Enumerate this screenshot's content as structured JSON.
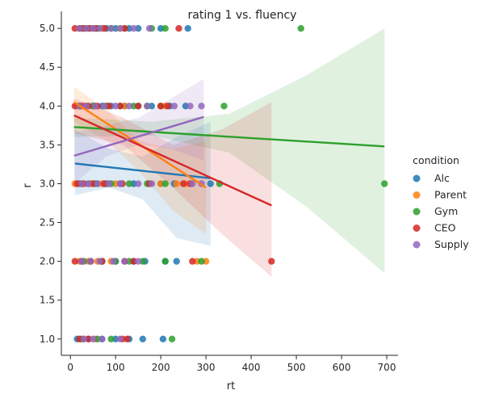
{
  "chart_data": {
    "type": "scatter",
    "title": "rating 1 vs. fluency",
    "xlabel": "rt",
    "ylabel": "r",
    "xlim": [
      -20,
      725
    ],
    "ylim": [
      0.79,
      5.22
    ],
    "xticks": [
      0,
      100,
      200,
      300,
      400,
      500,
      600,
      700
    ],
    "yticks": [
      1.0,
      1.5,
      2.0,
      2.5,
      3.0,
      3.5,
      4.0,
      4.5,
      5.0
    ],
    "grid": false,
    "legend": {
      "title": "condition",
      "placement": "right",
      "entries": [
        "Alc",
        "Parent",
        "Gym",
        "CEO",
        "Supply"
      ]
    },
    "series": [
      {
        "name": "Alc",
        "color": "#1f77b4",
        "points": [
          [
            20,
            5
          ],
          [
            30,
            5
          ],
          [
            45,
            5
          ],
          [
            60,
            5
          ],
          [
            80,
            5
          ],
          [
            100,
            5
          ],
          [
            130,
            5
          ],
          [
            150,
            5
          ],
          [
            200,
            5
          ],
          [
            260,
            5
          ],
          [
            20,
            4
          ],
          [
            35,
            4
          ],
          [
            50,
            4
          ],
          [
            70,
            4
          ],
          [
            90,
            4
          ],
          [
            120,
            4
          ],
          [
            150,
            4
          ],
          [
            180,
            4
          ],
          [
            220,
            4
          ],
          [
            255,
            4
          ],
          [
            20,
            3
          ],
          [
            40,
            3
          ],
          [
            60,
            3
          ],
          [
            80,
            3
          ],
          [
            110,
            3
          ],
          [
            140,
            3
          ],
          [
            200,
            3
          ],
          [
            230,
            3
          ],
          [
            310,
            3
          ],
          [
            25,
            2
          ],
          [
            45,
            2
          ],
          [
            70,
            2
          ],
          [
            100,
            2
          ],
          [
            140,
            2
          ],
          [
            165,
            2
          ],
          [
            210,
            2
          ],
          [
            235,
            2
          ],
          [
            15,
            1
          ],
          [
            40,
            1
          ],
          [
            70,
            1
          ],
          [
            100,
            1
          ],
          [
            130,
            1
          ],
          [
            160,
            1
          ],
          [
            205,
            1
          ]
        ],
        "regression": {
          "x": [
            10,
            310
          ],
          "y": [
            3.26,
            3.07
          ]
        },
        "ci_upper": [
          3.7,
          3.45,
          3.35,
          3.6,
          3.8
        ],
        "ci_lower": [
          2.85,
          2.95,
          2.8,
          2.3,
          2.2
        ]
      },
      {
        "name": "Parent",
        "color": "#ff7f0e",
        "points": [
          [
            20,
            5
          ],
          [
            35,
            5
          ],
          [
            50,
            5
          ],
          [
            70,
            5
          ],
          [
            110,
            5
          ],
          [
            15,
            4
          ],
          [
            30,
            4
          ],
          [
            55,
            4
          ],
          [
            80,
            4
          ],
          [
            120,
            4
          ],
          [
            210,
            4
          ],
          [
            10,
            3
          ],
          [
            25,
            3
          ],
          [
            45,
            3
          ],
          [
            70,
            3
          ],
          [
            100,
            3
          ],
          [
            200,
            3
          ],
          [
            235,
            3
          ],
          [
            255,
            3
          ],
          [
            20,
            2
          ],
          [
            40,
            2
          ],
          [
            60,
            2
          ],
          [
            90,
            2
          ],
          [
            280,
            2
          ],
          [
            300,
            2
          ],
          [
            30,
            1
          ],
          [
            55,
            1
          ]
        ],
        "regression": {
          "x": [
            8,
            300
          ],
          "y": [
            4.05,
            2.95
          ]
        },
        "ci_upper": [
          4.25,
          3.95,
          3.55,
          3.45,
          3.55
        ],
        "ci_lower": [
          3.8,
          3.55,
          3.15,
          2.65,
          2.35
        ]
      },
      {
        "name": "Gym",
        "color": "#2ca02c",
        "points": [
          [
            30,
            5
          ],
          [
            60,
            5
          ],
          [
            90,
            5
          ],
          [
            120,
            5
          ],
          [
            180,
            5
          ],
          [
            210,
            5
          ],
          [
            510,
            5
          ],
          [
            20,
            4
          ],
          [
            50,
            4
          ],
          [
            80,
            4
          ],
          [
            110,
            4
          ],
          [
            140,
            4
          ],
          [
            170,
            4
          ],
          [
            200,
            4
          ],
          [
            340,
            4
          ],
          [
            25,
            3
          ],
          [
            55,
            3
          ],
          [
            90,
            3
          ],
          [
            130,
            3
          ],
          [
            170,
            3
          ],
          [
            210,
            3
          ],
          [
            330,
            3
          ],
          [
            695,
            3
          ],
          [
            30,
            2
          ],
          [
            70,
            2
          ],
          [
            100,
            2
          ],
          [
            130,
            2
          ],
          [
            160,
            2
          ],
          [
            210,
            2
          ],
          [
            290,
            2
          ],
          [
            25,
            1
          ],
          [
            60,
            1
          ],
          [
            90,
            1
          ],
          [
            225,
            1
          ]
        ],
        "regression": {
          "x": [
            8,
            695
          ],
          "y": [
            3.73,
            3.48
          ]
        },
        "ci_upper": [
          3.85,
          3.8,
          3.9,
          4.4,
          5.0
        ],
        "ci_lower": [
          3.6,
          3.62,
          3.4,
          2.7,
          1.85
        ]
      },
      {
        "name": "CEO",
        "color": "#d62728",
        "points": [
          [
            10,
            5
          ],
          [
            25,
            5
          ],
          [
            40,
            5
          ],
          [
            55,
            5
          ],
          [
            75,
            5
          ],
          [
            120,
            5
          ],
          [
            240,
            5
          ],
          [
            10,
            4
          ],
          [
            25,
            4
          ],
          [
            40,
            4
          ],
          [
            60,
            4
          ],
          [
            85,
            4
          ],
          [
            110,
            4
          ],
          [
            150,
            4
          ],
          [
            200,
            4
          ],
          [
            215,
            4
          ],
          [
            15,
            3
          ],
          [
            30,
            3
          ],
          [
            50,
            3
          ],
          [
            75,
            3
          ],
          [
            115,
            3
          ],
          [
            175,
            3
          ],
          [
            250,
            3
          ],
          [
            265,
            3
          ],
          [
            10,
            2
          ],
          [
            25,
            2
          ],
          [
            45,
            2
          ],
          [
            70,
            2
          ],
          [
            120,
            2
          ],
          [
            140,
            2
          ],
          [
            270,
            2
          ],
          [
            445,
            2
          ],
          [
            20,
            1
          ],
          [
            40,
            1
          ],
          [
            115,
            1
          ],
          [
            125,
            1
          ]
        ],
        "regression": {
          "x": [
            8,
            445
          ],
          "y": [
            3.88,
            2.72
          ]
        },
        "ci_upper": [
          4.1,
          3.85,
          3.5,
          3.7,
          4.05
        ],
        "ci_lower": [
          3.65,
          3.5,
          2.95,
          2.35,
          1.8
        ]
      },
      {
        "name": "Supply",
        "color": "#9467bd",
        "points": [
          [
            20,
            5
          ],
          [
            35,
            5
          ],
          [
            50,
            5
          ],
          [
            65,
            5
          ],
          [
            90,
            5
          ],
          [
            110,
            5
          ],
          [
            140,
            5
          ],
          [
            175,
            5
          ],
          [
            20,
            4
          ],
          [
            35,
            4
          ],
          [
            55,
            4
          ],
          [
            75,
            4
          ],
          [
            100,
            4
          ],
          [
            130,
            4
          ],
          [
            170,
            4
          ],
          [
            230,
            4
          ],
          [
            265,
            4
          ],
          [
            290,
            4
          ],
          [
            25,
            3
          ],
          [
            40,
            3
          ],
          [
            60,
            3
          ],
          [
            85,
            3
          ],
          [
            110,
            3
          ],
          [
            150,
            3
          ],
          [
            180,
            3
          ],
          [
            270,
            3
          ],
          [
            290,
            3
          ],
          [
            25,
            2
          ],
          [
            45,
            2
          ],
          [
            65,
            2
          ],
          [
            95,
            2
          ],
          [
            120,
            2
          ],
          [
            150,
            2
          ],
          [
            30,
            1
          ],
          [
            50,
            1
          ],
          [
            70,
            1
          ],
          [
            110,
            1
          ]
        ],
        "regression": {
          "x": [
            8,
            295
          ],
          "y": [
            3.36,
            3.86
          ]
        },
        "ci_upper": [
          3.65,
          3.75,
          3.85,
          4.1,
          4.35
        ],
        "ci_lower": [
          3.0,
          3.35,
          3.5,
          3.45,
          3.3
        ]
      }
    ]
  }
}
